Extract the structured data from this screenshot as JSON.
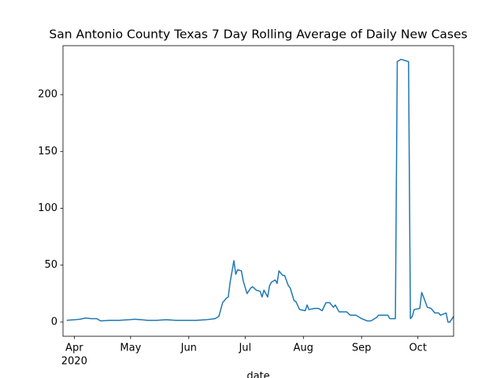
{
  "chart_data": {
    "type": "line",
    "title": "San Antonio County Texas 7 Day Rolling Average of Daily New Cases",
    "xlabel": "date",
    "x": [
      "2020-03-28",
      "2020-04-01",
      "2020-04-04",
      "2020-04-07",
      "2020-04-10",
      "2020-04-13",
      "2020-04-15",
      "2020-04-20",
      "2020-04-25",
      "2020-04-30",
      "2020-05-03",
      "2020-05-07",
      "2020-05-10",
      "2020-05-15",
      "2020-05-20",
      "2020-05-25",
      "2020-05-31",
      "2020-06-05",
      "2020-06-10",
      "2020-06-15",
      "2020-06-17",
      "2020-06-19",
      "2020-06-21",
      "2020-06-22",
      "2020-06-23",
      "2020-06-25",
      "2020-06-26",
      "2020-06-27",
      "2020-06-29",
      "2020-06-30",
      "2020-07-02",
      "2020-07-04",
      "2020-07-05",
      "2020-07-07",
      "2020-07-09",
      "2020-07-10",
      "2020-07-11",
      "2020-07-13",
      "2020-07-14",
      "2020-07-15",
      "2020-07-17",
      "2020-07-18",
      "2020-07-19",
      "2020-07-21",
      "2020-07-22",
      "2020-07-24",
      "2020-07-25",
      "2020-07-27",
      "2020-07-28",
      "2020-07-30",
      "2020-08-02",
      "2020-08-03",
      "2020-08-04",
      "2020-08-07",
      "2020-08-09",
      "2020-08-11",
      "2020-08-13",
      "2020-08-15",
      "2020-08-17",
      "2020-08-18",
      "2020-08-20",
      "2020-08-24",
      "2020-08-26",
      "2020-08-29",
      "2020-09-01",
      "2020-09-04",
      "2020-09-06",
      "2020-09-09",
      "2020-09-10",
      "2020-09-15",
      "2020-09-16",
      "2020-09-19",
      "2020-09-20",
      "2020-09-21",
      "2020-09-22",
      "2020-09-24",
      "2020-09-26",
      "2020-09-27",
      "2020-09-28",
      "2020-09-29",
      "2020-10-02",
      "2020-10-03",
      "2020-10-04",
      "2020-10-06",
      "2020-10-08",
      "2020-10-10",
      "2020-10-12",
      "2020-10-13",
      "2020-10-16",
      "2020-10-17",
      "2020-10-18",
      "2020-10-20"
    ],
    "values": [
      1.5,
      2,
      2.5,
      3.5,
      3,
      3,
      1,
      1.5,
      1.5,
      2,
      2.5,
      2,
      1.5,
      1.5,
      2,
      1.5,
      1.5,
      1.5,
      2,
      3,
      5,
      17,
      21,
      22,
      35,
      54,
      42,
      46,
      45,
      36,
      25,
      30,
      31,
      28,
      27,
      22,
      28,
      22,
      32,
      35,
      37,
      34,
      45,
      41,
      41,
      32,
      30,
      19,
      18,
      11,
      10,
      15,
      11,
      12,
      12,
      10,
      17,
      17,
      13,
      15,
      9,
      9,
      6,
      6,
      3,
      1,
      1,
      4,
      6,
      6,
      3,
      3,
      229,
      230,
      231,
      230,
      229,
      3,
      5,
      11,
      12,
      26,
      22,
      13,
      12,
      8,
      8,
      6,
      8,
      0,
      0,
      5
    ],
    "color": "#1f77b4",
    "xlim": [
      "2020-03-26",
      "2020-10-20"
    ],
    "xticks": [
      {
        "value": "2020-04-01",
        "label": "Apr",
        "sublabel": "2020"
      },
      {
        "value": "2020-05-01",
        "label": "May"
      },
      {
        "value": "2020-06-01",
        "label": "Jun"
      },
      {
        "value": "2020-07-01",
        "label": "Jul"
      },
      {
        "value": "2020-08-01",
        "label": "Aug"
      },
      {
        "value": "2020-09-01",
        "label": "Sep"
      },
      {
        "value": "2020-10-01",
        "label": "Oct"
      }
    ],
    "ylim": [
      -12.5,
      243
    ],
    "yticks": [
      0,
      50,
      100,
      150,
      200
    ],
    "grid": false
  }
}
